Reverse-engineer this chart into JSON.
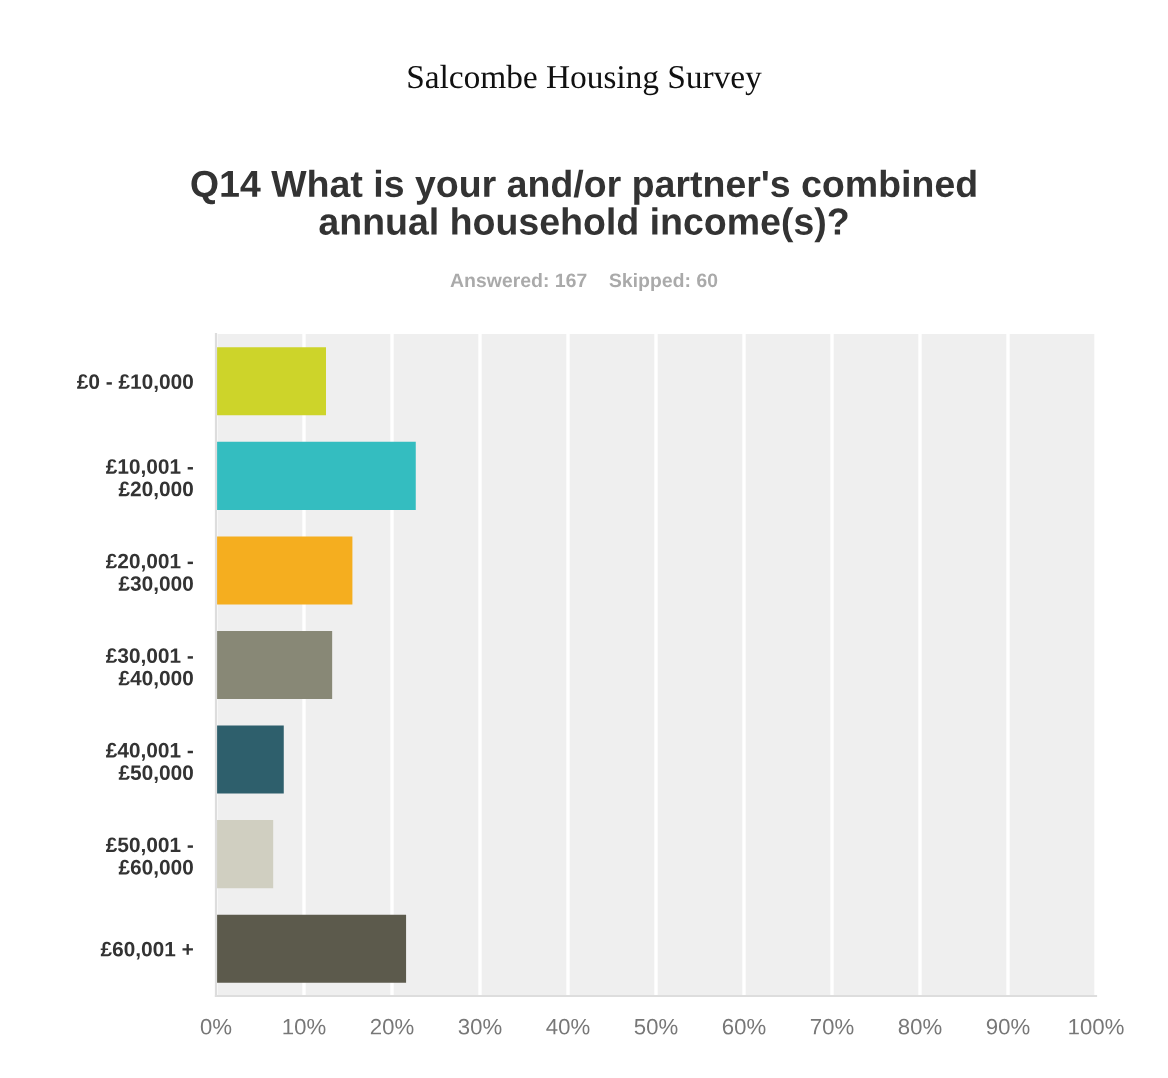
{
  "chart_data": {
    "type": "bar",
    "orientation": "horizontal",
    "title": "Salcombe Housing Survey",
    "subtitle": "Q14 What is your and/or partner's combined\nannual household income(s)?",
    "annotations": [
      "Answered: 167    Skipped: 60"
    ],
    "categories": [
      "£0 - £10,000",
      "£10,001 -\n£20,000",
      "£20,001 -\n£30,000",
      "£30,001 -\n£40,000",
      "£40,001 -\n£50,000",
      "£50,001 -\n£60,000",
      "£60,001 +"
    ],
    "values": [
      12.5,
      22.7,
      15.5,
      13.2,
      7.7,
      6.5,
      21.6
    ],
    "colors": [
      "#cdd42a",
      "#34bdc0",
      "#f5ae1f",
      "#888876",
      "#2e5f6c",
      "#d0cfc1",
      "#5c5a4c"
    ],
    "xlim": [
      0,
      100
    ],
    "xticks": [
      {
        "value": 0,
        "label": "0%"
      },
      {
        "value": 10,
        "label": "10%"
      },
      {
        "value": 20,
        "label": "20%"
      },
      {
        "value": 30,
        "label": "30%"
      },
      {
        "value": 40,
        "label": "40%"
      },
      {
        "value": 50,
        "label": "50%"
      },
      {
        "value": 60,
        "label": "60%"
      },
      {
        "value": 70,
        "label": "70%"
      },
      {
        "value": 80,
        "label": "80%"
      },
      {
        "value": 90,
        "label": "90%"
      },
      {
        "value": 100,
        "label": "100%"
      }
    ],
    "grid": "x"
  }
}
